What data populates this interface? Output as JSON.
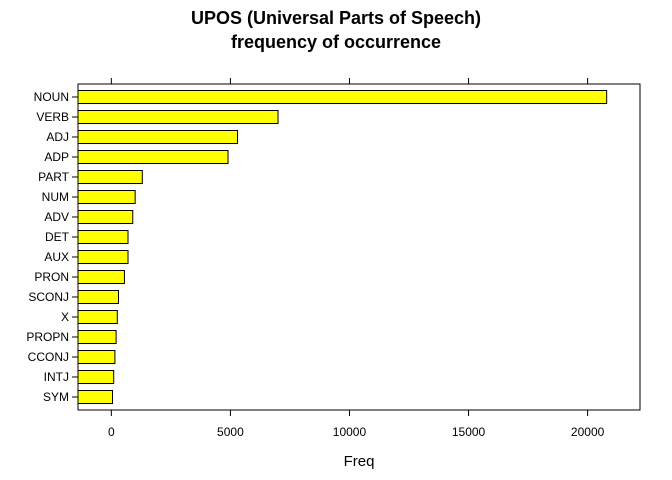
{
  "chart_data": {
    "type": "bar",
    "orientation": "horizontal",
    "title": "UPOS (Universal Parts of Speech)",
    "subtitle": "frequency of occurrence",
    "xlabel": "Freq",
    "ylabel": "",
    "categories": [
      "NOUN",
      "VERB",
      "ADJ",
      "ADP",
      "PART",
      "NUM",
      "ADV",
      "DET",
      "AUX",
      "PRON",
      "SCONJ",
      "X",
      "PROPN",
      "CCONJ",
      "INTJ",
      "SYM"
    ],
    "values": [
      20800,
      7000,
      5300,
      4900,
      1300,
      1000,
      900,
      700,
      700,
      550,
      300,
      250,
      200,
      150,
      100,
      50
    ],
    "xlim": [
      -1400,
      22200
    ],
    "xticks": [
      0,
      5000,
      10000,
      15000,
      20000
    ],
    "xtick_labels": [
      "0",
      "5000",
      "10000",
      "15000",
      "20000"
    ],
    "bar_color": "#ffff00",
    "bar_edge_color": "#000000",
    "grid": false,
    "legend": "none"
  }
}
